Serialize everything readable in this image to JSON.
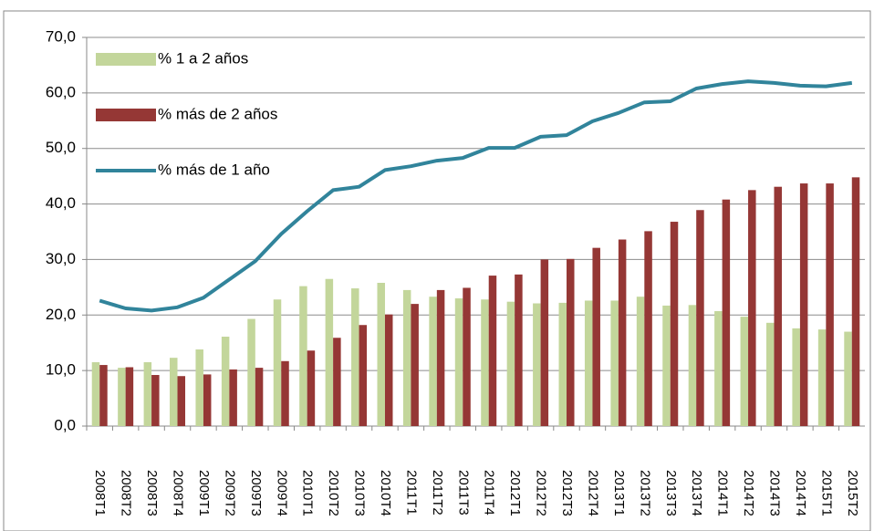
{
  "chart_data": {
    "type": "bar-line",
    "categories": [
      "2008T1",
      "2008T2",
      "2008T3",
      "2008T4",
      "2009T1",
      "2009T2",
      "2009T3",
      "2009T4",
      "2010T1",
      "2010T2",
      "2010T3",
      "2010T4",
      "2011T1",
      "2011T2",
      "2011T3",
      "2011T4",
      "2012T1",
      "2012T2",
      "2012T3",
      "2012T4",
      "2013T1",
      "2013T2",
      "2013T3",
      "2013T4",
      "2014T1",
      "2014T2",
      "2014T3",
      "2014T4",
      "2015T1",
      "2015T2"
    ],
    "series": [
      {
        "name": "% 1 a 2 años",
        "type": "bar",
        "color": "#c3d69b",
        "values": [
          11.5,
          10.5,
          11.5,
          12.3,
          13.8,
          16.1,
          19.3,
          22.8,
          25.2,
          26.5,
          24.8,
          25.8,
          24.5,
          23.3,
          23.0,
          22.8,
          22.4,
          22.1,
          22.2,
          22.6,
          22.6,
          23.3,
          21.7,
          21.8,
          20.7,
          19.7,
          18.6,
          17.6,
          17.4,
          17.0
        ]
      },
      {
        "name": "% más de 2 años",
        "type": "bar",
        "color": "#953735",
        "values": [
          11.0,
          10.6,
          9.2,
          9.0,
          9.3,
          10.2,
          10.5,
          11.7,
          13.6,
          15.9,
          18.2,
          20.1,
          22.0,
          24.5,
          24.9,
          27.1,
          27.3,
          30.0,
          30.1,
          32.1,
          33.6,
          35.1,
          36.8,
          38.9,
          40.8,
          42.5,
          43.1,
          43.7,
          43.7,
          44.8
        ]
      },
      {
        "name": "% más de 1 año",
        "type": "line",
        "color": "#31849b",
        "values": [
          22.6,
          21.2,
          20.8,
          21.4,
          23.1,
          26.4,
          29.7,
          34.6,
          38.7,
          42.5,
          43.1,
          46.1,
          46.8,
          47.8,
          48.3,
          50.1,
          50.1,
          52.1,
          52.4,
          54.9,
          56.4,
          58.3,
          58.5,
          60.8,
          61.6,
          62.1,
          61.8,
          61.3,
          61.2,
          61.8
        ]
      }
    ],
    "ylim": [
      0,
      70
    ],
    "yticks": [
      {
        "value": 0,
        "label": "0,0"
      },
      {
        "value": 10,
        "label": "10,0"
      },
      {
        "value": 20,
        "label": "20,0"
      },
      {
        "value": 30,
        "label": "30,0"
      },
      {
        "value": 40,
        "label": "40,0"
      },
      {
        "value": 50,
        "label": "50,0"
      },
      {
        "value": 60,
        "label": "60,0"
      },
      {
        "value": 70,
        "label": "70,0"
      }
    ],
    "grid": true,
    "legend": "top-left"
  }
}
